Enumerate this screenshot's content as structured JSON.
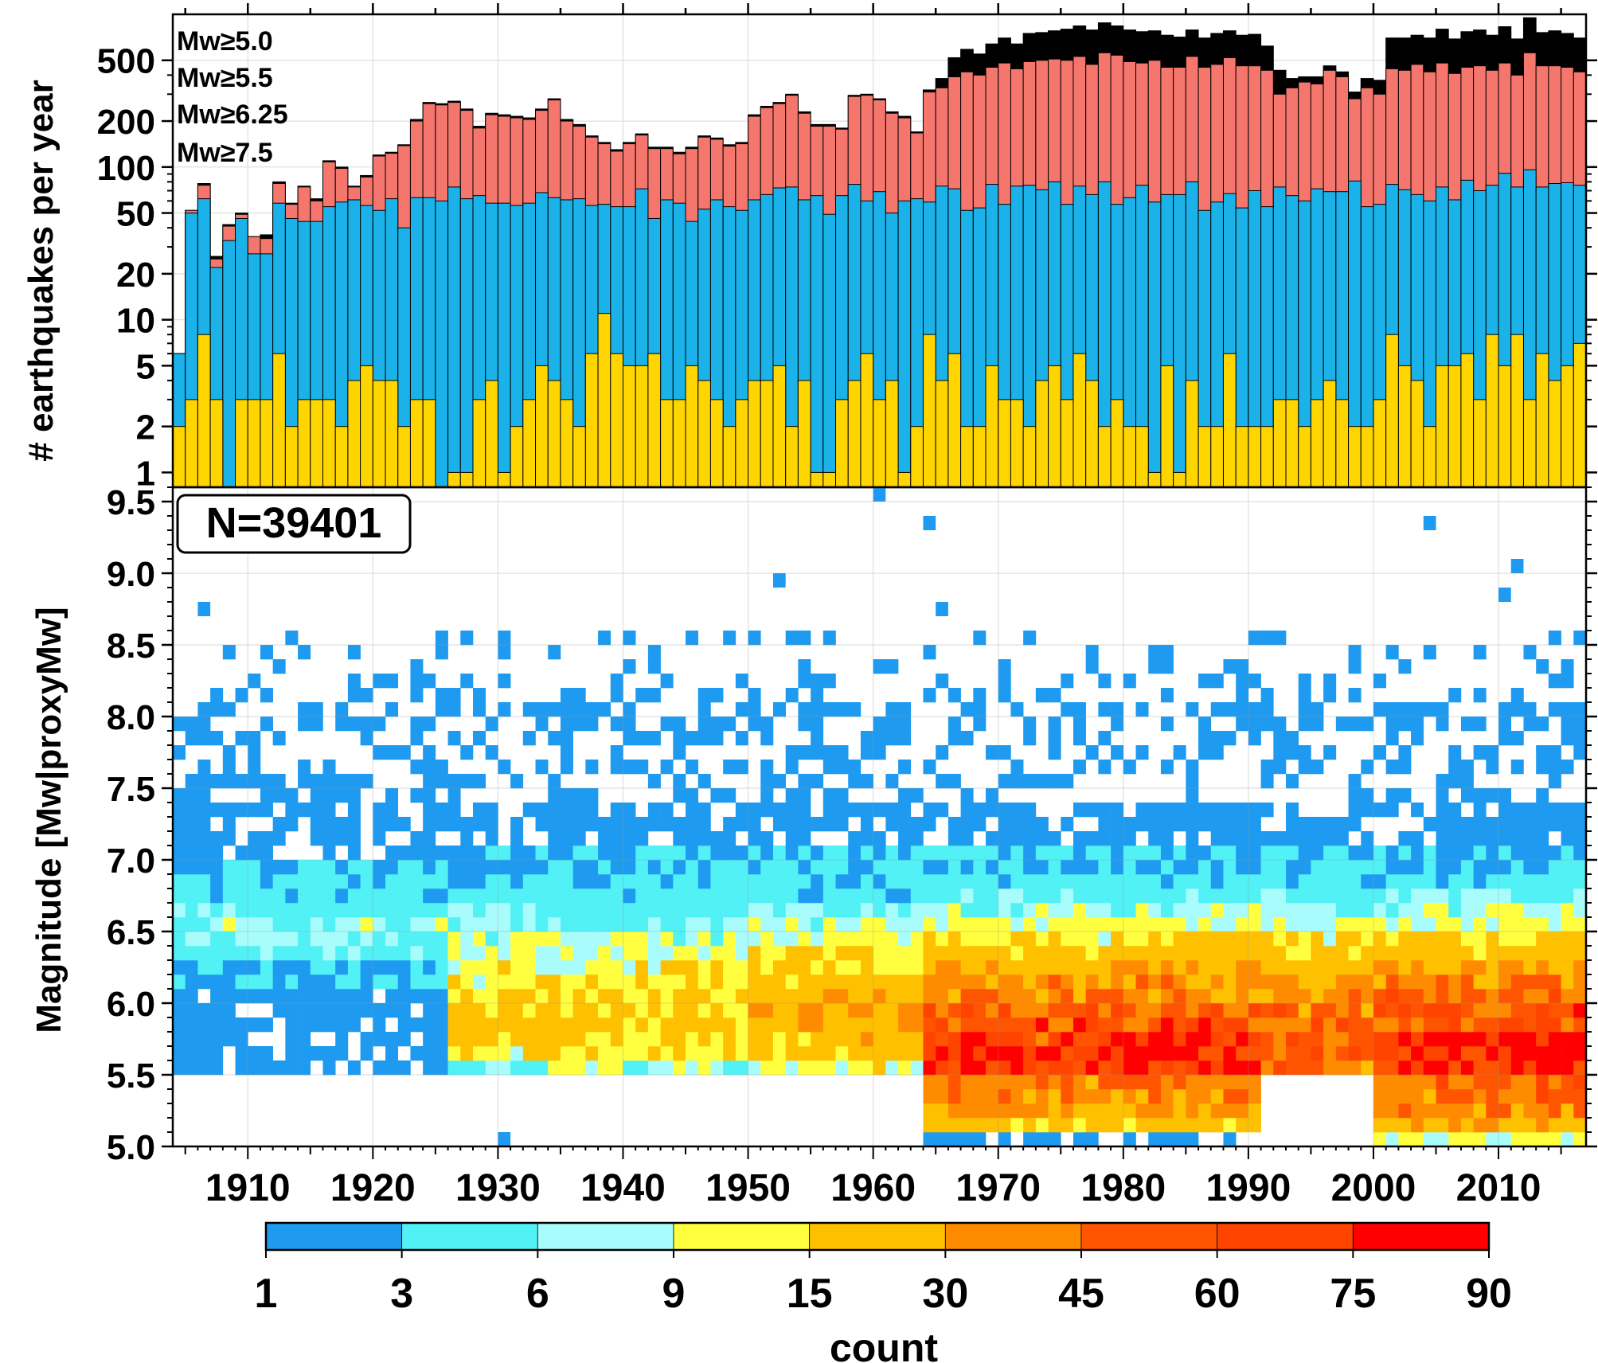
{
  "chart_data": [
    {
      "type": "bar",
      "stacked": true,
      "ylabel": "# earthquakes per year",
      "yscale": "log",
      "ylim": [
        0.8,
        1000
      ],
      "xlim": [
        1904,
        2017
      ],
      "yticks": [
        "1",
        "2",
        "5",
        "10",
        "20",
        "50",
        "100",
        "200",
        "500"
      ],
      "grid": true,
      "legend_position": "top-left",
      "x": [
        1904,
        1905,
        1906,
        1907,
        1908,
        1909,
        1910,
        1911,
        1912,
        1913,
        1914,
        1915,
        1916,
        1917,
        1918,
        1919,
        1920,
        1921,
        1922,
        1923,
        1924,
        1925,
        1926,
        1927,
        1928,
        1929,
        1930,
        1931,
        1932,
        1933,
        1934,
        1935,
        1936,
        1937,
        1938,
        1939,
        1940,
        1941,
        1942,
        1943,
        1944,
        1945,
        1946,
        1947,
        1948,
        1949,
        1950,
        1951,
        1952,
        1953,
        1954,
        1955,
        1956,
        1957,
        1958,
        1959,
        1960,
        1961,
        1962,
        1963,
        1964,
        1965,
        1966,
        1967,
        1968,
        1969,
        1970,
        1971,
        1972,
        1973,
        1974,
        1975,
        1976,
        1977,
        1978,
        1979,
        1980,
        1981,
        1982,
        1983,
        1984,
        1985,
        1986,
        1987,
        1988,
        1989,
        1990,
        1991,
        1992,
        1993,
        1994,
        1995,
        1996,
        1997,
        1998,
        1999,
        2000,
        2001,
        2002,
        2003,
        2004,
        2005,
        2006,
        2007,
        2008,
        2009,
        2010,
        2011,
        2012,
        2013,
        2014,
        2015,
        2016
      ],
      "series": [
        {
          "name": "Mw≥5.0",
          "color": "#000000",
          "values": [
            6,
            52,
            78,
            26,
            42,
            50,
            35,
            36,
            80,
            58,
            75,
            62,
            110,
            100,
            75,
            88,
            120,
            125,
            140,
            205,
            265,
            260,
            270,
            240,
            185,
            225,
            220,
            215,
            210,
            240,
            280,
            205,
            190,
            160,
            145,
            130,
            145,
            165,
            135,
            135,
            125,
            135,
            160,
            155,
            140,
            145,
            220,
            250,
            265,
            300,
            230,
            190,
            190,
            180,
            295,
            300,
            280,
            230,
            215,
            170,
            320,
            380,
            520,
            590,
            550,
            640,
            700,
            640,
            750,
            760,
            780,
            800,
            840,
            790,
            880,
            840,
            790,
            770,
            780,
            730,
            710,
            790,
            700,
            750,
            780,
            730,
            740,
            620,
            430,
            380,
            390,
            390,
            460,
            420,
            310,
            380,
            370,
            700,
            700,
            730,
            700,
            800,
            690,
            770,
            790,
            730,
            830,
            690,
            950,
            760,
            780,
            750,
            700
          ]
        },
        {
          "name": "Mw≥5.5",
          "color": "#f4766d",
          "values": [
            6,
            52,
            76,
            25,
            41,
            49,
            35,
            34,
            78,
            57,
            74,
            60,
            108,
            98,
            74,
            86,
            118,
            123,
            138,
            200,
            260,
            255,
            265,
            235,
            180,
            220,
            215,
            210,
            205,
            235,
            275,
            200,
            185,
            157,
            142,
            127,
            142,
            162,
            132,
            132,
            122,
            132,
            157,
            152,
            137,
            142,
            215,
            245,
            260,
            295,
            225,
            185,
            185,
            177,
            290,
            295,
            275,
            225,
            210,
            167,
            310,
            330,
            390,
            420,
            400,
            450,
            480,
            440,
            490,
            500,
            510,
            500,
            530,
            470,
            560,
            540,
            490,
            480,
            500,
            450,
            450,
            530,
            450,
            470,
            520,
            460,
            460,
            430,
            300,
            330,
            360,
            350,
            430,
            390,
            280,
            330,
            300,
            440,
            430,
            470,
            420,
            480,
            410,
            450,
            460,
            430,
            480,
            400,
            560,
            460,
            460,
            450,
            420
          ]
        },
        {
          "name": "Mw≥6.25",
          "color": "#1ab2e8",
          "values": [
            6,
            50,
            62,
            22,
            33,
            46,
            27,
            27,
            58,
            46,
            44,
            44,
            55,
            59,
            61,
            56,
            52,
            62,
            40,
            63,
            63,
            60,
            74,
            62,
            65,
            58,
            58,
            56,
            58,
            68,
            63,
            61,
            62,
            56,
            57,
            55,
            55,
            72,
            46,
            61,
            58,
            44,
            53,
            61,
            55,
            52,
            61,
            66,
            73,
            74,
            61,
            65,
            49,
            65,
            77,
            60,
            69,
            50,
            60,
            62,
            59,
            75,
            72,
            52,
            54,
            77,
            57,
            75,
            76,
            71,
            80,
            57,
            75,
            66,
            80,
            57,
            63,
            76,
            59,
            66,
            66,
            80,
            52,
            59,
            67,
            54,
            70,
            55,
            74,
            65,
            60,
            72,
            69,
            69,
            81,
            55,
            57,
            77,
            71,
            66,
            60,
            74,
            61,
            82,
            70,
            76,
            91,
            74,
            96,
            74,
            78,
            79,
            76
          ]
        },
        {
          "name": "Mw≥7.5",
          "color": "#ffd500",
          "values": [
            2,
            3,
            8,
            3,
            0,
            3,
            3,
            3,
            6,
            2,
            3,
            3,
            3,
            2,
            4,
            5,
            4,
            4,
            2,
            3,
            3,
            0,
            1,
            1,
            3,
            4,
            1,
            2,
            3,
            5,
            4,
            3,
            2,
            6,
            11,
            6,
            5,
            5,
            6,
            3,
            3,
            5,
            4,
            3,
            2,
            3,
            4,
            4,
            5,
            2,
            4,
            1,
            1,
            3,
            4,
            6,
            3,
            4,
            1,
            2,
            8,
            4,
            6,
            2,
            2,
            5,
            3,
            3,
            2,
            4,
            5,
            3,
            6,
            4,
            2,
            3,
            2,
            2,
            1,
            5,
            1,
            4,
            2,
            2,
            6,
            2,
            2,
            2,
            3,
            3,
            2,
            3,
            4,
            3,
            2,
            2,
            3,
            8,
            5,
            4,
            2,
            5,
            5,
            6,
            3,
            8,
            5,
            8,
            3,
            6,
            4,
            5,
            7
          ]
        }
      ]
    },
    {
      "type": "heatmap",
      "title": "",
      "annotation": "N=39401",
      "xlabel": "",
      "ylabel": "Magnitude [Mw|proxyMw]",
      "xlim": [
        1904,
        2017
      ],
      "ylim": [
        5.0,
        9.6
      ],
      "xticks": [
        "1910",
        "1920",
        "1930",
        "1940",
        "1950",
        "1960",
        "1970",
        "1980",
        "1990",
        "2000",
        "2010"
      ],
      "yticks": [
        "5.0",
        "5.5",
        "6.0",
        "6.5",
        "7.0",
        "7.5",
        "8.0",
        "8.5",
        "9.0",
        "9.5"
      ],
      "x_bin_width_years": 1,
      "y_bin_width_magnitude": 0.1,
      "grid": true,
      "colorbar": {
        "label": "count",
        "tick_labels": [
          "1",
          "3",
          "6",
          "9",
          "15",
          "30",
          "45",
          "60",
          "75",
          "90"
        ],
        "boundaries": [
          1,
          3,
          6,
          9,
          15,
          30,
          45,
          60,
          75,
          90
        ],
        "colors": [
          "#1e9bf0",
          "#52f1f5",
          "#a9fcfc",
          "#ffff40",
          "#ffc000",
          "#ff8c00",
          "#ff5500",
          "#ff4400",
          "#ff0000"
        ]
      },
      "profile_by_year_class": {
        "description": "Estimated typical count per magnitude bin (5.0 to 9.5), by era; individual cells vary around these values",
        "magnitude_bins": [
          5.0,
          5.1,
          5.2,
          5.3,
          5.4,
          5.5,
          5.6,
          5.7,
          5.8,
          5.9,
          6.0,
          6.1,
          6.2,
          6.3,
          6.4,
          6.5,
          6.6,
          6.7,
          6.8,
          6.9,
          7.0,
          7.1,
          7.2,
          7.3,
          7.4,
          7.5,
          7.6,
          7.7,
          7.8,
          7.9,
          8.0,
          8.1,
          8.2,
          8.3,
          8.4,
          8.5,
          8.6,
          8.7,
          8.8,
          8.9,
          9.0,
          9.1,
          9.2,
          9.3,
          9.4,
          9.5
        ],
        "1904-1925": [
          0,
          0,
          0,
          0,
          0,
          2,
          2,
          2,
          2,
          2,
          2,
          3,
          3,
          5,
          6,
          7,
          5,
          4,
          4,
          3,
          2,
          2,
          2,
          2,
          2,
          2,
          1,
          1,
          1,
          0.5,
          0.5,
          0.3,
          0.3,
          0.2,
          0.2,
          0.1,
          0,
          0,
          0,
          0,
          0,
          0,
          0,
          0,
          0,
          0
        ],
        "1926-1949": [
          0,
          0,
          0,
          0,
          0,
          8,
          14,
          16,
          18,
          18,
          16,
          14,
          12,
          10,
          9,
          6,
          5,
          4,
          3,
          3,
          3,
          2,
          2,
          2,
          1,
          1,
          1,
          1,
          1,
          0.5,
          0.5,
          0.3,
          0.2,
          0.2,
          0.1,
          0.1,
          0,
          0,
          0,
          0,
          0,
          0,
          0,
          0,
          0,
          0
        ],
        "1950-1963": [
          0,
          0,
          0,
          0,
          0,
          12,
          18,
          22,
          26,
          26,
          24,
          20,
          16,
          13,
          11,
          8,
          6,
          4,
          3,
          3,
          3,
          2,
          2,
          2,
          1,
          1,
          1,
          1,
          1,
          0.5,
          0.5,
          0.3,
          0.2,
          0.2,
          0.1,
          0.1,
          0,
          0,
          0,
          0,
          0,
          0,
          0,
          0,
          0,
          0
        ],
        "1964-1990": [
          2,
          20,
          30,
          40,
          42,
          80,
          78,
          70,
          60,
          50,
          42,
          34,
          26,
          20,
          14,
          10,
          7,
          5,
          4,
          3,
          3,
          2,
          2,
          2,
          1,
          1,
          1,
          1,
          1,
          0.5,
          0.5,
          0.3,
          0.2,
          0.2,
          0.1,
          0.1,
          0,
          0,
          0,
          0,
          0,
          0,
          0,
          0,
          0,
          0
        ],
        "1991-1999": [
          0,
          0,
          0,
          0,
          0,
          46,
          50,
          52,
          50,
          45,
          38,
          30,
          24,
          18,
          14,
          10,
          7,
          5,
          4,
          3,
          3,
          2,
          2,
          2,
          1,
          1,
          1,
          1,
          1,
          0.5,
          0.5,
          0.3,
          0.2,
          0.2,
          0.1,
          0.1,
          0,
          0,
          0,
          0,
          0,
          0,
          0,
          0,
          0,
          0
        ],
        "2000-2016": [
          10,
          30,
          40,
          45,
          48,
          80,
          78,
          70,
          62,
          55,
          48,
          38,
          30,
          22,
          16,
          11,
          8,
          6,
          4,
          3,
          3,
          2,
          2,
          2,
          1,
          1,
          1,
          1,
          1,
          0.5,
          0.5,
          0.3,
          0.2,
          0.2,
          0.1,
          0.1,
          0,
          0,
          0,
          0,
          0,
          0,
          0,
          0,
          0,
          0
        ]
      },
      "extreme_events": [
        {
          "year": 1906,
          "magnitude": 8.7
        },
        {
          "year": 1930,
          "magnitude": 5.0
        },
        {
          "year": 1952,
          "magnitude": 8.9
        },
        {
          "year": 1960,
          "magnitude": 9.5
        },
        {
          "year": 1964,
          "magnitude": 9.3
        },
        {
          "year": 1965,
          "magnitude": 8.7
        },
        {
          "year": 2004,
          "magnitude": 9.3
        },
        {
          "year": 2011,
          "magnitude": 9.0
        },
        {
          "year": 2010,
          "magnitude": 8.8
        }
      ]
    }
  ]
}
